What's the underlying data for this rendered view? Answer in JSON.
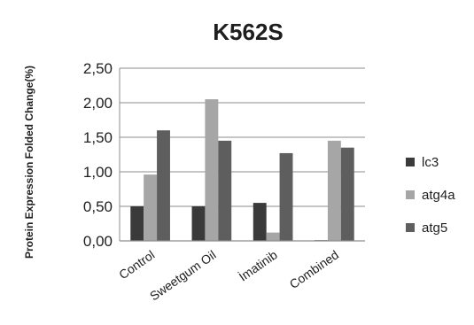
{
  "chart_data": {
    "type": "bar",
    "title": "K562S",
    "ylabel": "Protein Expression Folded Change(%)",
    "xlabel": "",
    "categories": [
      "Control",
      "Sweetgum Oil",
      "İmatinib",
      "Combined"
    ],
    "ylim": [
      0,
      2.5
    ],
    "yticks": [
      "0,00",
      "0,50",
      "1,00",
      "1,50",
      "2,00",
      "2,50"
    ],
    "grid": "horizontal",
    "legend_position": "right",
    "series": [
      {
        "name": "lc3",
        "color": "#3a3a3a",
        "values": [
          0.5,
          0.5,
          0.55,
          0.01
        ]
      },
      {
        "name": "atg4a",
        "color": "#a6a6a6",
        "values": [
          0.96,
          2.05,
          0.12,
          1.45
        ]
      },
      {
        "name": "atg5",
        "color": "#5e5e5e",
        "values": [
          1.6,
          1.45,
          1.27,
          1.35
        ]
      }
    ]
  }
}
